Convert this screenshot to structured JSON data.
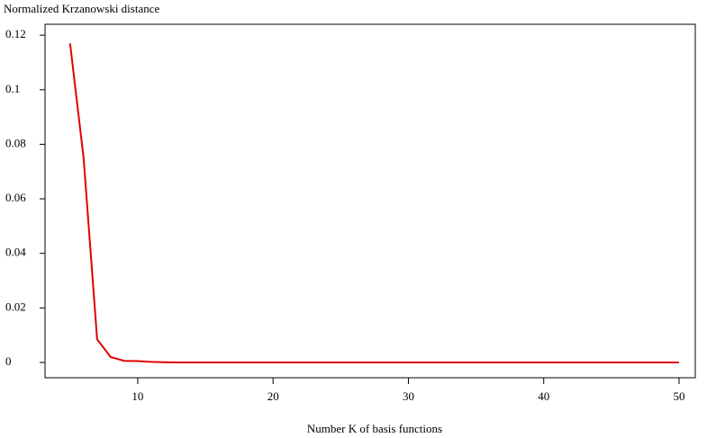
{
  "chart_data": {
    "type": "line",
    "title": "Normalized Krzanowski distance",
    "x_label": "Number K of basis functions",
    "x": [
      5,
      6,
      7,
      8,
      9,
      10,
      11,
      12,
      13,
      14,
      15,
      16,
      17,
      18,
      19,
      20,
      21,
      22,
      23,
      24,
      25,
      26,
      27,
      28,
      29,
      30,
      31,
      32,
      33,
      34,
      35,
      36,
      37,
      38,
      39,
      40,
      41,
      42,
      43,
      44,
      45,
      46,
      47,
      48,
      49,
      50
    ],
    "series": [
      {
        "color": "#e00000",
        "values": [
          0.117,
          0.075,
          0.0085,
          0.002,
          0.0006,
          0.0005,
          0.0002,
          0.0001,
          0,
          0,
          0,
          0,
          0,
          0,
          0,
          0,
          0,
          0,
          0,
          0,
          0,
          0,
          0,
          0,
          0,
          0,
          0,
          0,
          0,
          0,
          0,
          0,
          0,
          0,
          0,
          0,
          0,
          0,
          0,
          0,
          0,
          0,
          0,
          0,
          0,
          0
        ]
      }
    ],
    "xlim": [
      3.15,
      51.2
    ],
    "xticks": [
      10,
      20,
      30,
      40,
      50
    ],
    "ylim": [
      -0.0056,
      0.124
    ],
    "yticks": [
      0,
      0.02,
      0.04,
      0.06,
      0.08,
      0.1,
      0.12
    ]
  }
}
